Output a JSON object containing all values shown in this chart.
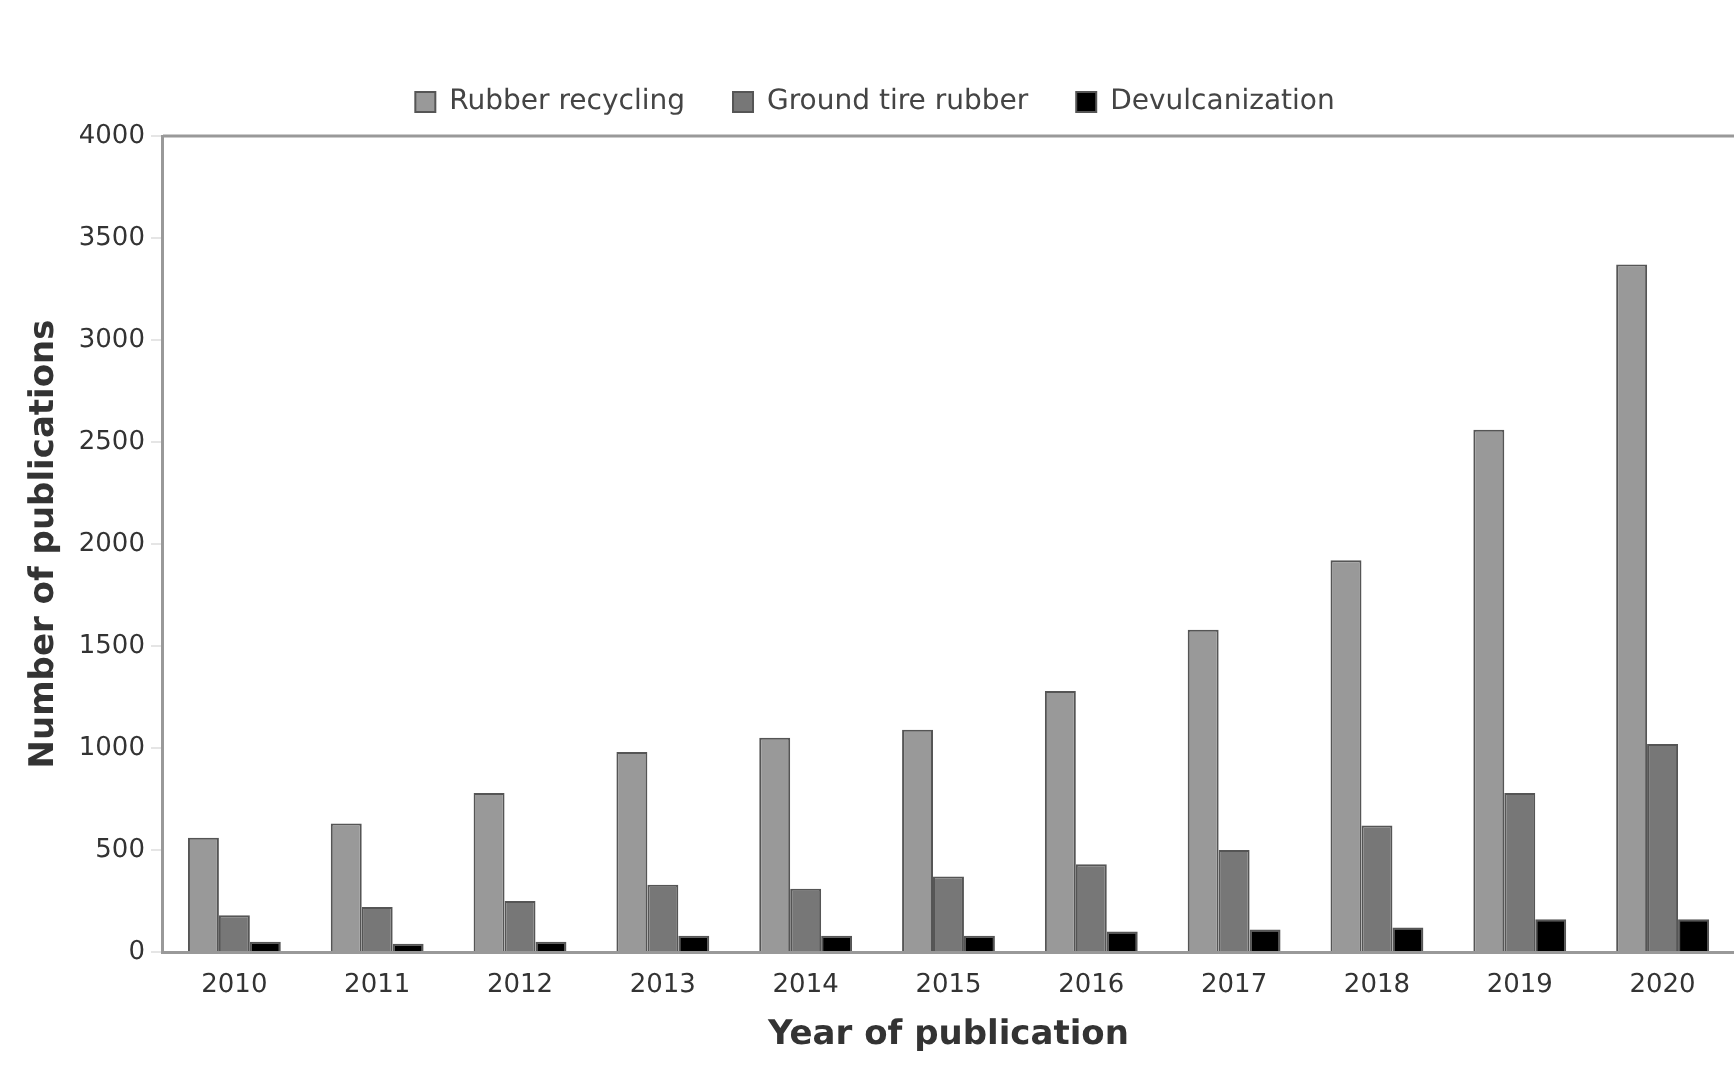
{
  "chart_data": {
    "type": "bar",
    "xlabel": "Year of publication",
    "ylabel": "Number of publications",
    "categories": [
      "2010",
      "2011",
      "2012",
      "2013",
      "2014",
      "2015",
      "2016",
      "2017",
      "2018",
      "2019",
      "2020"
    ],
    "series": [
      {
        "name": "Rubber recycling",
        "color": "#999999",
        "values": [
          560,
          630,
          780,
          980,
          1050,
          1090,
          1280,
          1580,
          1920,
          2560,
          3370
        ]
      },
      {
        "name": "Ground tire rubber",
        "color": "#777777",
        "values": [
          180,
          220,
          250,
          330,
          310,
          370,
          430,
          500,
          620,
          780,
          1020
        ]
      },
      {
        "name": "Devulcanization",
        "color": "#000000",
        "values": [
          50,
          40,
          50,
          80,
          80,
          80,
          100,
          110,
          120,
          160,
          160
        ]
      }
    ],
    "ylim": [
      0,
      4000
    ],
    "yticks": [
      0,
      500,
      1000,
      1500,
      2000,
      2500,
      3000,
      3500,
      4000
    ],
    "grid": false,
    "legend": "top"
  }
}
